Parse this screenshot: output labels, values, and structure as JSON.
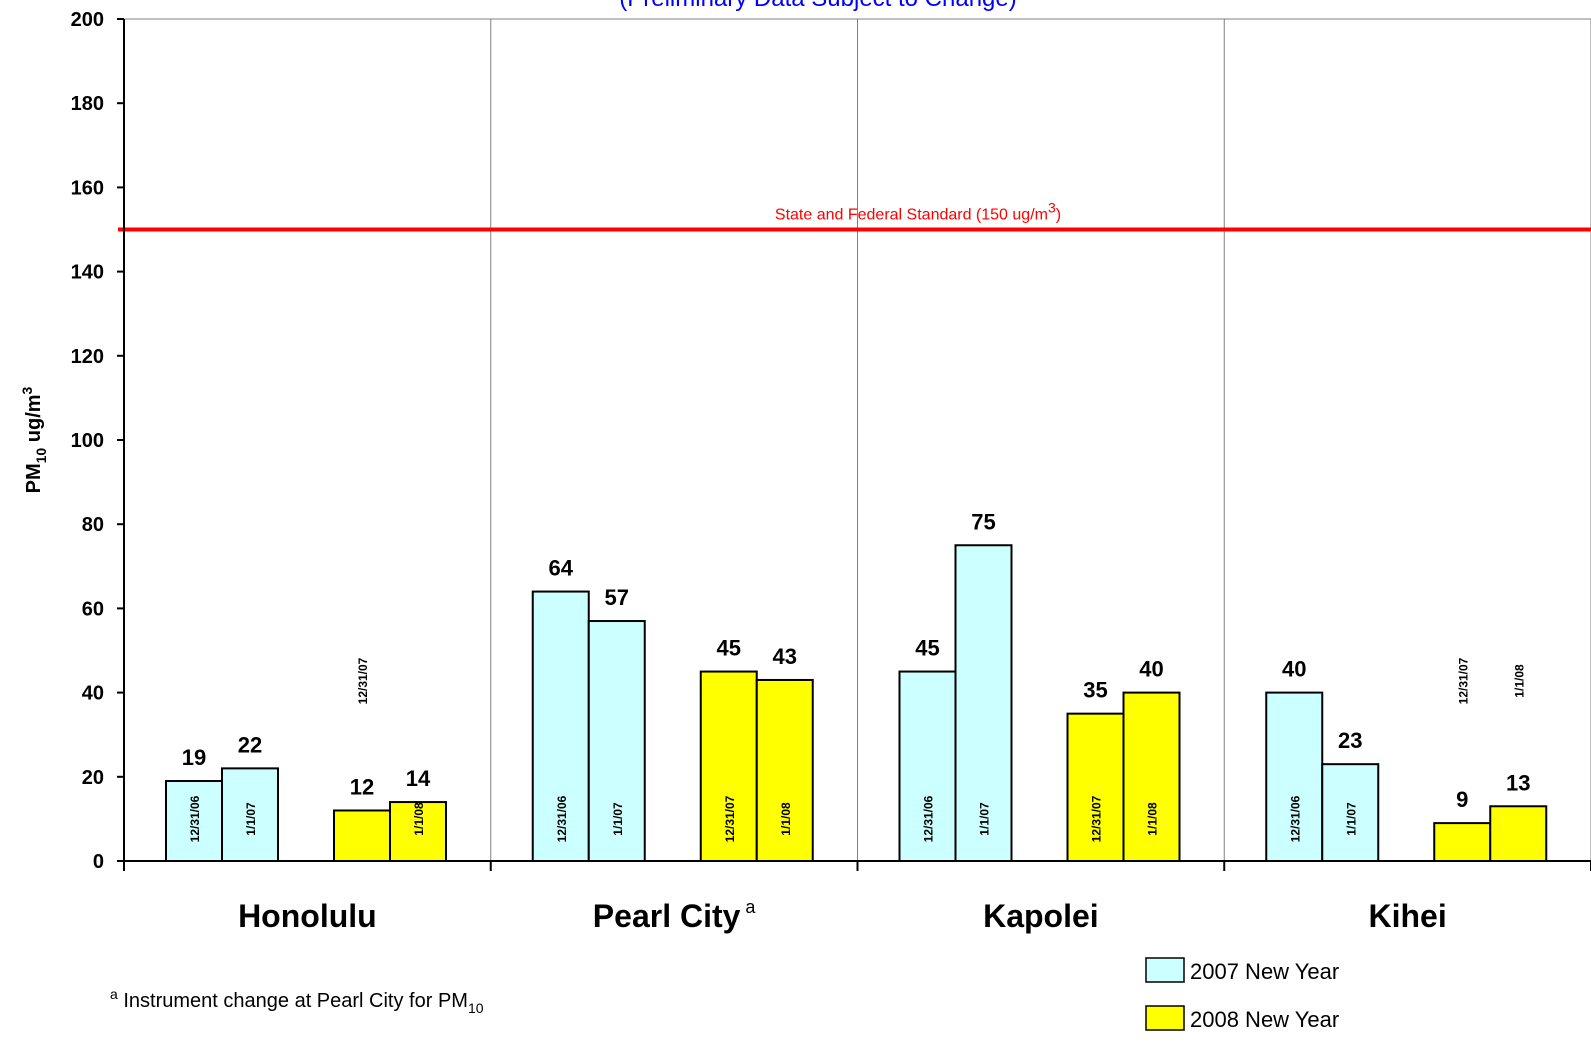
{
  "chart_data": {
    "type": "bar",
    "subtitle": "(Preliminary Data Subject to Change)",
    "ylabel": {
      "base": "PM",
      "sub": "10",
      "tail": " ug/m",
      "sup": "3"
    },
    "ylim": [
      0,
      200
    ],
    "yticks": [
      0,
      20,
      40,
      60,
      80,
      100,
      120,
      140,
      160,
      180,
      200
    ],
    "grid": "vertical separators between sites",
    "standard": {
      "value": 150,
      "label_main": "State and Federal Standard (150 ug/m",
      "label_sup": "3",
      "label_tail": ")",
      "color": "#ff0000"
    },
    "categories": [
      {
        "name": "Honolulu",
        "footnote_mark": ""
      },
      {
        "name": "Pearl City",
        "footnote_mark": "a"
      },
      {
        "name": "Kapolei",
        "footnote_mark": ""
      },
      {
        "name": "Kihei",
        "footnote_mark": ""
      }
    ],
    "series": [
      {
        "name": "2007 New Year",
        "color": "#ccffff",
        "dates": [
          "12/31/06",
          "1/1/07"
        ],
        "values": [
          [
            19,
            22
          ],
          [
            64,
            57
          ],
          [
            45,
            75
          ],
          [
            40,
            23
          ]
        ]
      },
      {
        "name": "2008 New Year",
        "color": "#ffff00",
        "dates": [
          "12/31/07",
          "1/1/08"
        ],
        "values": [
          [
            12,
            14
          ],
          [
            45,
            43
          ],
          [
            35,
            40
          ],
          [
            9,
            13
          ]
        ]
      }
    ],
    "legend_position": "bottom-right",
    "footnote": {
      "mark": "a",
      "text": " Instrument change at Pearl City for PM",
      "sub": "10"
    }
  }
}
